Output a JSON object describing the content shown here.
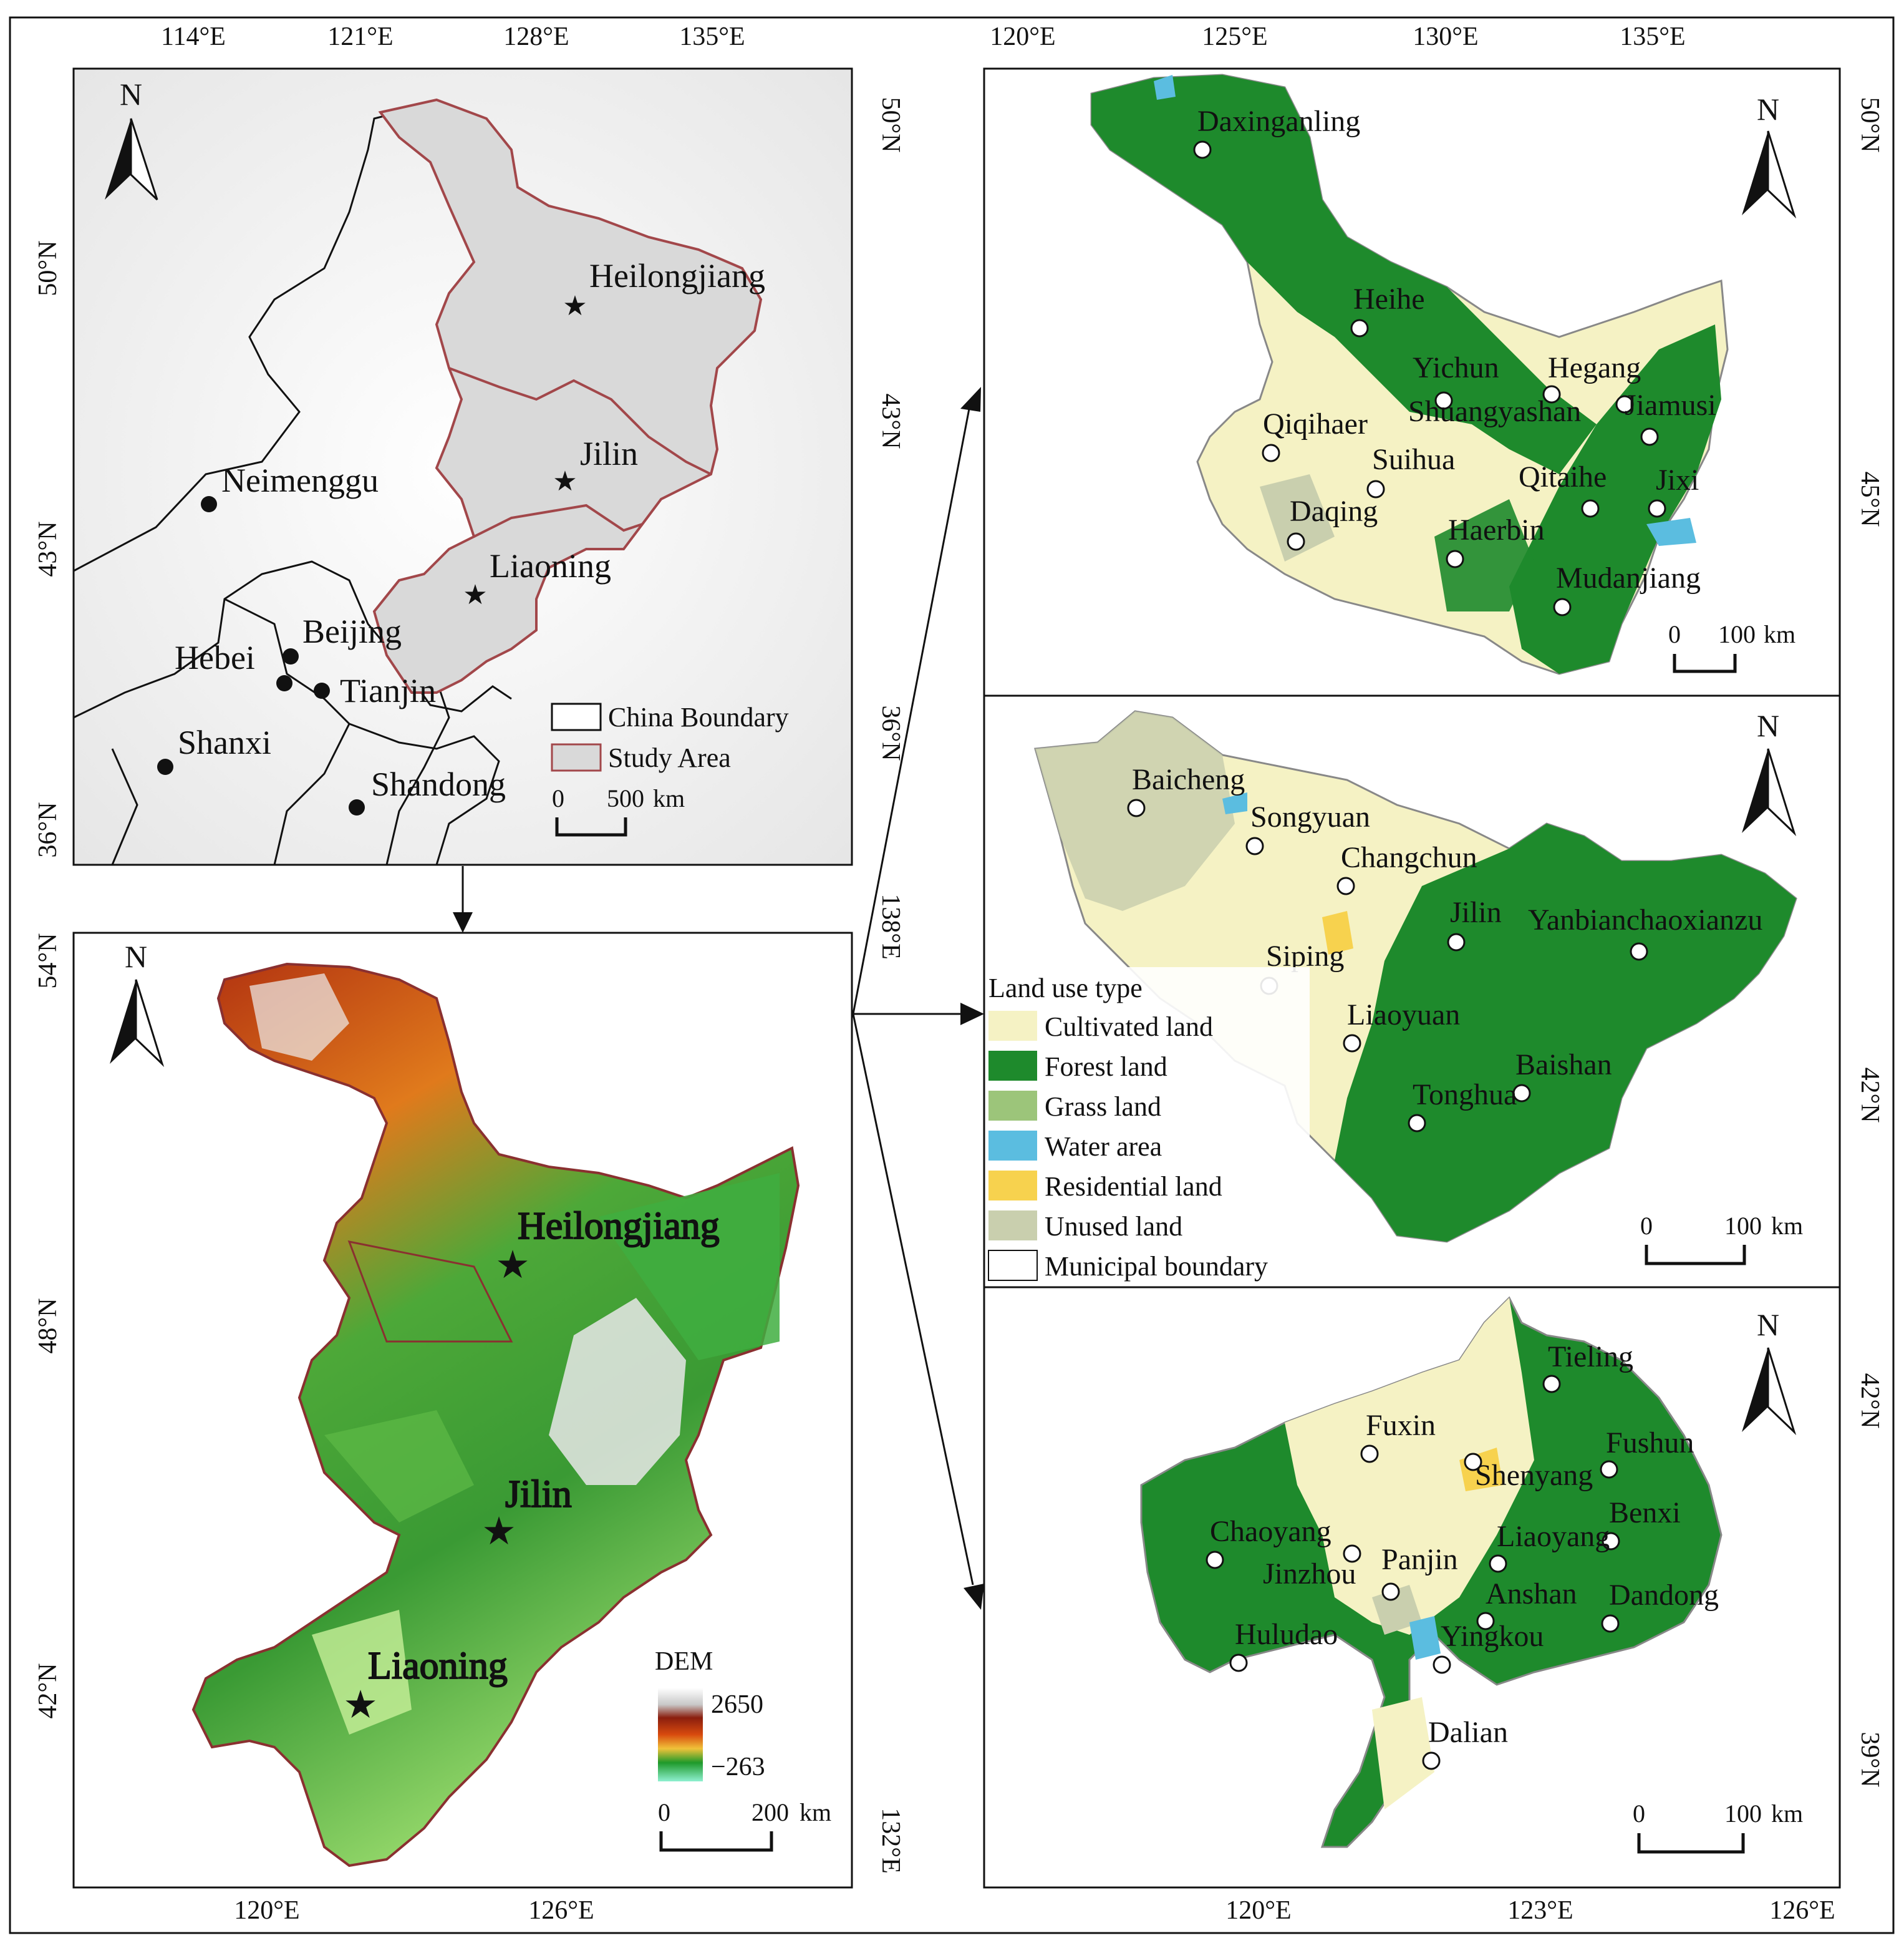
{
  "overview": {
    "top_ticks": [
      "114°E",
      "121°E",
      "128°E",
      "135°E"
    ],
    "right_ticks": [
      "50°N",
      "43°N",
      "36°N"
    ],
    "left_ticks": [
      "50°N",
      "43°N",
      "36°N"
    ],
    "provinces": [
      "Heilongjiang",
      "Jilin",
      "Liaoning"
    ],
    "cities": [
      "Neimenggu",
      "Beijing",
      "Hebei",
      "Tianjin",
      "Shanxi",
      "Shandong"
    ],
    "legend": {
      "china": "China Boundary",
      "study": "Study Area"
    },
    "scale": {
      "zero": "0",
      "dist": "500",
      "unit": "km"
    }
  },
  "dem": {
    "left_ticks": [
      "54°N",
      "48°N",
      "42°N"
    ],
    "bottom_ticks": [
      "120°E",
      "126°E"
    ],
    "right_ticks": [
      "138°E",
      "132°E"
    ],
    "provinces": [
      "Heilongjiang",
      "Jilin",
      "Liaoning"
    ],
    "legend_title": "DEM",
    "legend_max": "2650",
    "legend_min": "−263",
    "scale": {
      "zero": "0",
      "dist": "200",
      "unit": "km"
    }
  },
  "heilongjiang": {
    "top_ticks": [
      "120°E",
      "125°E",
      "130°E",
      "135°E"
    ],
    "right_ticks": [
      "50°N",
      "45°N"
    ],
    "cities": [
      "Daxinganling",
      "Heihe",
      "Yichun",
      "Hegang",
      "Shuangyashan",
      "Jiamusi",
      "Qiqihaer",
      "Suihua",
      "Qitaihe",
      "Jixi",
      "Daqing",
      "Haerbin",
      "Mudanjiang"
    ],
    "scale": {
      "zero": "0",
      "dist": "100",
      "unit": "km"
    }
  },
  "jilin": {
    "right_ticks": [
      "42°N"
    ],
    "cities": [
      "Baicheng",
      "Songyuan",
      "Changchun",
      "Jilin",
      "Yanbianchaoxianzu",
      "Siping",
      "Liaoyuan",
      "Baishan",
      "Tonghua"
    ],
    "scale": {
      "zero": "0",
      "dist": "100",
      "unit": "km"
    }
  },
  "liaoning": {
    "right_ticks": [
      "42°N",
      "39°N"
    ],
    "bottom_ticks": [
      "120°E",
      "123°E",
      "126°E"
    ],
    "cities": [
      "Tieling",
      "Fuxin",
      "Fushun",
      "Shenyang",
      "Benxi",
      "Chaoyang",
      "Liaoyang",
      "Jinzhou",
      "Panjin",
      "Anshan",
      "Dandong",
      "Huludao",
      "Yingkou",
      "Dalian"
    ],
    "scale": {
      "zero": "0",
      "dist": "100",
      "unit": "km"
    }
  },
  "north": "N",
  "landuse_legend": {
    "title": "Land use type",
    "items": [
      {
        "label": "Cultivated land",
        "color": "#f5f2c4"
      },
      {
        "label": "Forest land",
        "color": "#1e8a2c"
      },
      {
        "label": "Grass land",
        "color": "#9cc57a"
      },
      {
        "label": "Water area",
        "color": "#5bbde0"
      },
      {
        "label": "Residential land",
        "color": "#f7d24e"
      },
      {
        "label": "Unused land",
        "color": "#c9cfae"
      },
      {
        "label": "Municipal boundary",
        "color": "#ffffff"
      }
    ]
  },
  "colors": {
    "study_fill": "#d9d9d9",
    "study_border": "#a2474a",
    "forest": "#1e8a2c",
    "cultivated": "#f5f2c4"
  }
}
